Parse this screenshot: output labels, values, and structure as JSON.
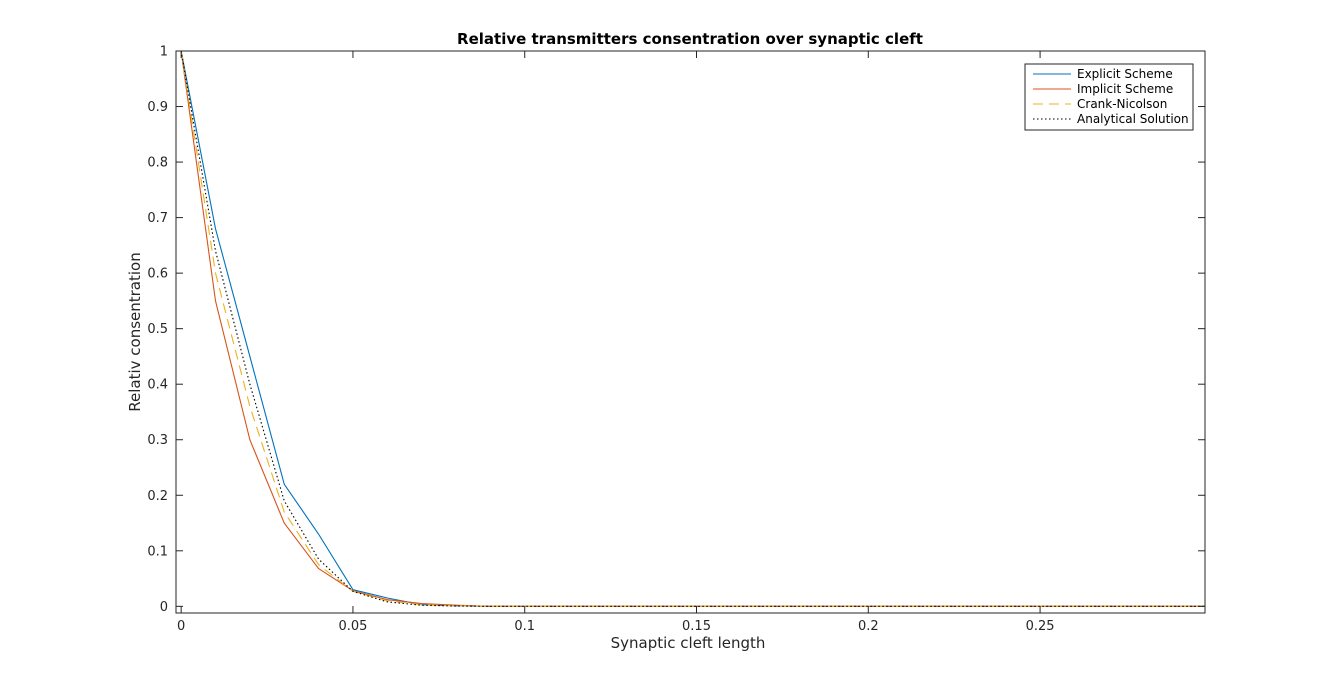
{
  "chart_data": {
    "type": "line",
    "title": "Relative transmitters consentration over synaptic cleft",
    "xlabel": "Synaptic cleft length",
    "ylabel": "Relativ consentration",
    "xlim": [
      -0.0015,
      0.298
    ],
    "ylim": [
      -0.012,
      1.0
    ],
    "xticks": [
      0,
      0.05,
      0.1,
      0.15,
      0.2,
      0.25
    ],
    "xtick_labels": [
      "0",
      "0.05",
      "0.1",
      "0.15",
      "0.2",
      "0.25"
    ],
    "yticks": [
      0,
      0.1,
      0.2,
      0.3,
      0.4,
      0.5,
      0.6,
      0.7,
      0.8,
      0.9,
      1
    ],
    "ytick_labels": [
      "0",
      "0.1",
      "0.2",
      "0.3",
      "0.4",
      "0.5",
      "0.6",
      "0.7",
      "0.8",
      "0.9",
      "1"
    ],
    "grid": false,
    "legend_position": "top-right",
    "x": [
      0,
      0.01,
      0.02,
      0.03,
      0.04,
      0.05,
      0.06,
      0.07,
      0.08,
      0.09,
      0.1,
      0.15,
      0.2,
      0.25,
      0.298
    ],
    "series": [
      {
        "name": "Explicit Scheme",
        "color": "#0072BD",
        "style": "solid",
        "values": [
          1.0,
          0.68,
          0.45,
          0.22,
          0.13,
          0.03,
          0.015,
          0.003,
          0.001,
          0.0,
          0.0,
          0.0,
          0.0,
          0.0,
          0.0
        ]
      },
      {
        "name": "Implicit Scheme",
        "color": "#D95319",
        "style": "solid",
        "values": [
          1.0,
          0.55,
          0.3,
          0.15,
          0.068,
          0.028,
          0.012,
          0.005,
          0.002,
          0.0,
          0.0,
          0.0,
          0.0,
          0.0,
          0.0
        ]
      },
      {
        "name": "Crank-Nicolson",
        "color": "#EDB120",
        "style": "dashed",
        "values": [
          1.0,
          0.6,
          0.36,
          0.17,
          0.075,
          0.027,
          0.01,
          0.003,
          0.001,
          0.0,
          0.0,
          0.0,
          0.0,
          0.0,
          0.0
        ]
      },
      {
        "name": "Analytical Solution",
        "color": "#000000",
        "style": "dotted",
        "values": [
          1.0,
          0.64,
          0.4,
          0.19,
          0.085,
          0.027,
          0.008,
          0.002,
          0.0005,
          0.0,
          0.0,
          0.0,
          0.0,
          0.0,
          0.0
        ]
      }
    ]
  }
}
